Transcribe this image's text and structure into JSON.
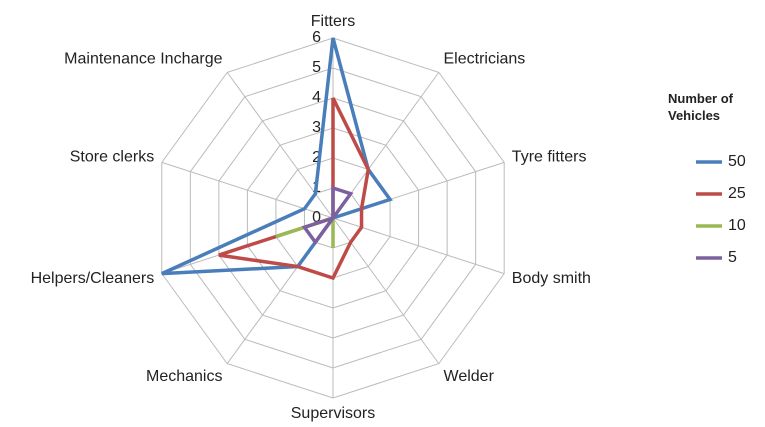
{
  "chart_data": {
    "type": "radar",
    "categories": [
      "Fitters",
      "Electricians",
      "Tyre fitters",
      "Body smith",
      "Welder",
      "Supervisors",
      "Mechanics",
      "Helpers/Cleaners",
      "Store clerks",
      "Maintenance Incharge"
    ],
    "legend_title": "Number of Vehicles",
    "legend": "right",
    "rlim": [
      0,
      6
    ],
    "rticks": [
      0,
      1,
      2,
      3,
      4,
      5,
      6
    ],
    "grid": true,
    "series": [
      {
        "name": "50",
        "color": "#4a7ebb",
        "values": [
          6,
          2,
          2,
          0,
          0,
          0,
          2,
          6,
          1,
          1
        ]
      },
      {
        "name": "25",
        "color": "#be4b48",
        "values": [
          4,
          2,
          1,
          1,
          1,
          2,
          2,
          4,
          0,
          0
        ]
      },
      {
        "name": "10",
        "color": "#98b954",
        "values": [
          0,
          0,
          0,
          0,
          0,
          1,
          0,
          2,
          0,
          0
        ]
      },
      {
        "name": "5",
        "color": "#7d60a0",
        "values": [
          1,
          1,
          0,
          0,
          0,
          0,
          1,
          1,
          0,
          0
        ]
      }
    ]
  }
}
